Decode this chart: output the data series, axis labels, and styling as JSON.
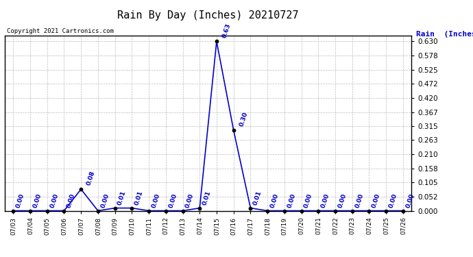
{
  "title": "Rain By Day (Inches) 20210727",
  "copyright_text": "Copyright 2021 Cartronics.com",
  "legend_text": "Rain  (Inches)",
  "dates": [
    "07/03",
    "07/04",
    "07/05",
    "07/06",
    "07/07",
    "07/08",
    "07/09",
    "07/10",
    "07/11",
    "07/12",
    "07/13",
    "07/14",
    "07/15",
    "07/16",
    "07/17",
    "07/18",
    "07/19",
    "07/20",
    "07/21",
    "07/22",
    "07/23",
    "07/24",
    "07/25",
    "07/26"
  ],
  "values": [
    0.0,
    0.0,
    0.0,
    0.0,
    0.08,
    0.0,
    0.01,
    0.01,
    0.0,
    0.0,
    0.0,
    0.01,
    0.63,
    0.3,
    0.01,
    0.0,
    0.0,
    0.0,
    0.0,
    0.0,
    0.0,
    0.0,
    0.0,
    0.0
  ],
  "line_color": "#0000CC",
  "marker_color": "#000000",
  "label_color": "#0000CC",
  "yticks": [
    0.0,
    0.052,
    0.105,
    0.158,
    0.21,
    0.263,
    0.315,
    0.367,
    0.42,
    0.472,
    0.525,
    0.578,
    0.63
  ],
  "ylim": [
    0.0,
    0.65
  ],
  "background_color": "#ffffff",
  "grid_color": "#bbbbbb",
  "title_color": "#000000",
  "border_color": "#000000"
}
